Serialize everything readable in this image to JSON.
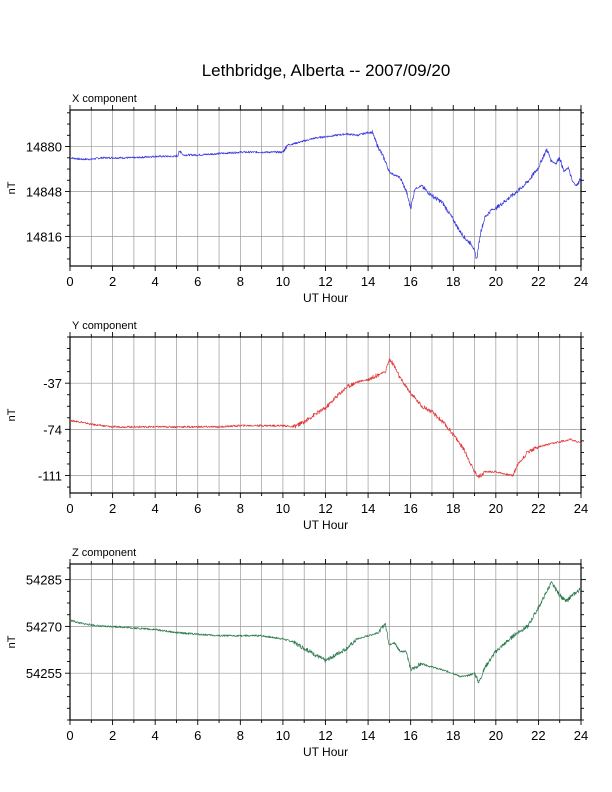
{
  "title": "Lethbridge, Alberta -- 2007/09/20",
  "chart_data": [
    {
      "type": "line",
      "title": "X component",
      "xlabel": "UT Hour",
      "ylabel": "nT",
      "xlim": [
        0,
        24
      ],
      "ylim": [
        14795,
        14906
      ],
      "xticks": [
        0,
        2,
        4,
        6,
        8,
        10,
        12,
        14,
        16,
        18,
        20,
        22,
        24
      ],
      "yticks": [
        14816,
        14848,
        14880
      ],
      "grid": true,
      "series": [
        {
          "color": "#3a3adf",
          "x": [
            0,
            0.5,
            1,
            1.5,
            2,
            3,
            4,
            5,
            5.2,
            5.3,
            6,
            7,
            8,
            9,
            10,
            10.2,
            10.5,
            11,
            11.5,
            12,
            12.5,
            13,
            13.5,
            14,
            14.2,
            14.4,
            14.6,
            14.8,
            15,
            15.2,
            15.5,
            15.8,
            16,
            16.2,
            16.5,
            17,
            17.5,
            18,
            18.3,
            18.6,
            18.9,
            19.1,
            19.3,
            19.5,
            19.8,
            20,
            20.5,
            21,
            21.5,
            22,
            22.2,
            22.4,
            22.6,
            22.8,
            23,
            23.2,
            23.4,
            23.6,
            23.8,
            24
          ],
          "y": [
            14872,
            14871,
            14871,
            14872,
            14872,
            14872,
            14873,
            14873,
            14877,
            14874,
            14874,
            14875,
            14876,
            14876,
            14876,
            14881,
            14882,
            14884,
            14886,
            14887,
            14888,
            14889,
            14888,
            14890,
            14890,
            14882,
            14876,
            14870,
            14862,
            14860,
            14858,
            14848,
            14836,
            14850,
            14852,
            14845,
            14840,
            14828,
            14820,
            14814,
            14810,
            14800,
            14820,
            14830,
            14835,
            14836,
            14842,
            14848,
            14855,
            14865,
            14872,
            14878,
            14870,
            14868,
            14872,
            14862,
            14865,
            14855,
            14852,
            14858
          ]
        }
      ]
    },
    {
      "type": "line",
      "title": "Y component",
      "xlabel": "UT Hour",
      "ylabel": "nT",
      "xlim": [
        0,
        24
      ],
      "ylim": [
        -125,
        0
      ],
      "xticks": [
        0,
        2,
        4,
        6,
        8,
        10,
        12,
        14,
        16,
        18,
        20,
        22,
        24
      ],
      "yticks": [
        -111,
        -74,
        -37
      ],
      "grid": true,
      "series": [
        {
          "color": "#e23a3a",
          "x": [
            0,
            0.5,
            1,
            1.5,
            2,
            3,
            4,
            5,
            6,
            7,
            8,
            9,
            10,
            10.5,
            11,
            11.5,
            12,
            12.5,
            13,
            13.5,
            14,
            14.5,
            14.8,
            15,
            15.2,
            15.5,
            16,
            16.5,
            17,
            17.5,
            18,
            18.5,
            19,
            19.2,
            19.5,
            20,
            20.5,
            20.8,
            21,
            21.5,
            22,
            22.5,
            23,
            23.5,
            24
          ],
          "y": [
            -67,
            -68,
            -70,
            -71,
            -72,
            -72,
            -72,
            -72,
            -72,
            -72,
            -71,
            -71,
            -71,
            -72,
            -68,
            -62,
            -57,
            -48,
            -40,
            -36,
            -34,
            -30,
            -28,
            -18,
            -22,
            -33,
            -45,
            -55,
            -60,
            -68,
            -78,
            -90,
            -108,
            -112,
            -108,
            -108,
            -110,
            -111,
            -103,
            -92,
            -88,
            -86,
            -84,
            -82,
            -85
          ]
        }
      ]
    },
    {
      "type": "line",
      "title": "Z component",
      "xlabel": "UT Hour",
      "ylabel": "nT",
      "xlim": [
        0,
        24
      ],
      "ylim": [
        54240,
        54290
      ],
      "xticks": [
        0,
        2,
        4,
        6,
        8,
        10,
        12,
        14,
        16,
        18,
        20,
        22,
        24
      ],
      "yticks": [
        54255,
        54270,
        54285
      ],
      "grid": true,
      "series": [
        {
          "color": "#2e7d4f",
          "x": [
            0,
            0.5,
            1,
            1.5,
            2,
            3,
            4,
            5,
            6,
            7,
            8,
            9,
            10,
            10.5,
            11,
            11.5,
            12,
            12.5,
            13,
            13.5,
            14,
            14.5,
            14.8,
            15,
            15.2,
            15.5,
            15.8,
            16,
            16.5,
            17,
            17.5,
            18,
            18.3,
            18.6,
            19,
            19.2,
            19.5,
            20,
            20.5,
            21,
            21.5,
            22,
            22.3,
            22.6,
            23,
            23.3,
            23.6,
            24
          ],
          "y": [
            54272,
            54271,
            54270.5,
            54270,
            54270,
            54269.5,
            54269,
            54268,
            54267.5,
            54267,
            54267,
            54267,
            54266,
            54265,
            54263,
            54261,
            54259,
            54261,
            54263,
            54266,
            54267,
            54268,
            54271,
            54264,
            54265,
            54262,
            54262,
            54256,
            54258,
            54257,
            54256,
            54255,
            54254,
            54254,
            54255,
            54252,
            54257,
            54262,
            54265,
            54268,
            54270,
            54276,
            54280,
            54284,
            54280,
            54278,
            54280,
            54282
          ]
        }
      ]
    }
  ]
}
